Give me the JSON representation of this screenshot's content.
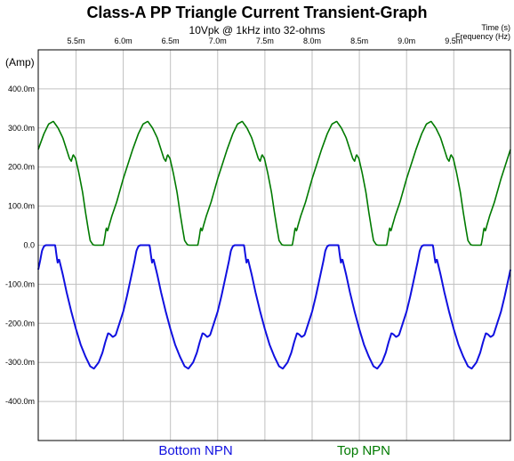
{
  "chart_data": {
    "type": "line",
    "title": "Class-A PP Triangle Current Transient-Graph",
    "subtitle": "10Vpk @ 1kHz into 32-ohms",
    "x_axis_label": "Time  (s)",
    "x_axis_label2": "Frequency  (Hz)",
    "y_axis_label": "(Amp)",
    "x_ticks": [
      "5.5m",
      "6.0m",
      "6.5m",
      "7.0m",
      "7.5m",
      "8.0m",
      "8.5m",
      "9.0m",
      "9.5m"
    ],
    "x_tick_values": [
      0.0055,
      0.006,
      0.0065,
      0.007,
      0.0075,
      0.008,
      0.0085,
      0.009,
      0.0095
    ],
    "y_ticks": [
      "400.0m",
      "300.0m",
      "200.0m",
      "100.0m",
      "0.0",
      "-100.0m",
      "-200.0m",
      "-300.0m",
      "-400.0m"
    ],
    "y_tick_values": [
      0.4,
      0.3,
      0.2,
      0.1,
      0.0,
      -0.1,
      -0.2,
      -0.3,
      -0.4
    ],
    "xlim": [
      0.0051,
      0.0101
    ],
    "ylim": [
      -0.5,
      0.5
    ],
    "period": 0.001,
    "grid": true,
    "legend_position": "bottom",
    "series": [
      {
        "name": "Top NPN",
        "color": "#007a00",
        "waveform_period_points": [
          [
            0.0,
            0.17
          ],
          [
            6e-05,
            0.215
          ],
          [
            0.0001,
            0.245
          ],
          [
            0.00016,
            0.285
          ],
          [
            0.00021,
            0.31
          ],
          [
            0.00026,
            0.317
          ],
          [
            0.00031,
            0.3
          ],
          [
            0.00036,
            0.275
          ],
          [
            0.0004,
            0.245
          ],
          [
            0.00043,
            0.222
          ],
          [
            0.00045,
            0.215
          ],
          [
            0.00047,
            0.232
          ],
          [
            0.000495,
            0.222
          ],
          [
            0.00053,
            0.185
          ],
          [
            0.00057,
            0.135
          ],
          [
            0.0006,
            0.085
          ],
          [
            0.00063,
            0.04
          ],
          [
            0.00065,
            0.012
          ],
          [
            0.00068,
            0.001
          ],
          [
            0.0007,
            0.0
          ],
          [
            0.00076,
            0.0
          ],
          [
            0.00079,
            0.0
          ],
          [
            0.000805,
            0.02
          ],
          [
            0.00082,
            0.045
          ],
          [
            0.000835,
            0.036
          ],
          [
            0.00085,
            0.05
          ],
          [
            0.00088,
            0.075
          ],
          [
            0.00093,
            0.11
          ],
          [
            0.001,
            0.17
          ]
        ]
      },
      {
        "name": "Bottom NPN",
        "color": "#1010e0",
        "waveform_period_points": [
          [
            0.0,
            -0.17
          ],
          [
            4e-05,
            -0.13
          ],
          [
            8e-05,
            -0.085
          ],
          [
            0.00012,
            -0.04
          ],
          [
            0.00014,
            -0.014
          ],
          [
            0.00016,
            -0.003
          ],
          [
            0.00018,
            0.0
          ],
          [
            0.00025,
            0.0
          ],
          [
            0.00028,
            0.0
          ],
          [
            0.00029,
            -0.02
          ],
          [
            0.000305,
            -0.045
          ],
          [
            0.00032,
            -0.035
          ],
          [
            0.000335,
            -0.05
          ],
          [
            0.00036,
            -0.075
          ],
          [
            0.0004,
            -0.12
          ],
          [
            0.00045,
            -0.17
          ],
          [
            0.0005,
            -0.215
          ],
          [
            0.00055,
            -0.255
          ],
          [
            0.0006,
            -0.285
          ],
          [
            0.00065,
            -0.31
          ],
          [
            0.00069,
            -0.316
          ],
          [
            0.00074,
            -0.3
          ],
          [
            0.00078,
            -0.275
          ],
          [
            0.00081,
            -0.248
          ],
          [
            0.00084,
            -0.225
          ],
          [
            0.00086,
            -0.228
          ],
          [
            0.00089,
            -0.235
          ],
          [
            0.00092,
            -0.23
          ],
          [
            0.00096,
            -0.2
          ],
          [
            0.001,
            -0.17
          ]
        ]
      }
    ]
  },
  "legend": {
    "bottom_label": "Bottom NPN",
    "top_label": "Top NPN"
  }
}
